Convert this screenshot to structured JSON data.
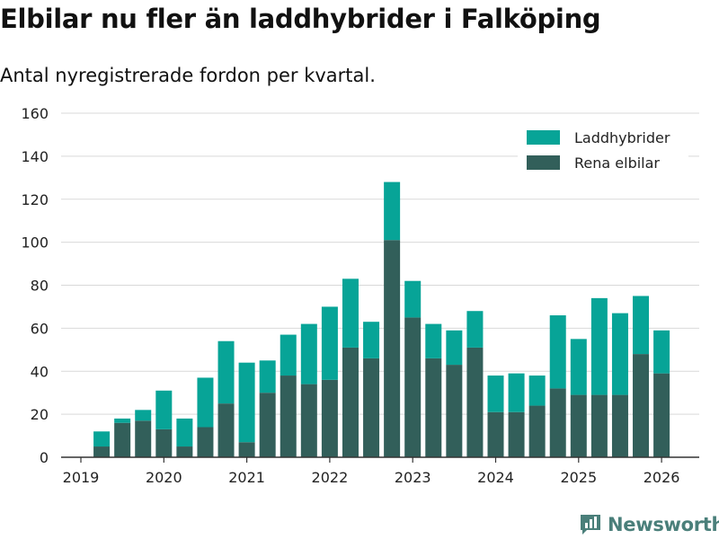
{
  "header": {
    "title": "Elbilar nu fler än laddhybrider i Falköping",
    "subtitle": "Antal nyregistrerade fordon per kvartal."
  },
  "brand": {
    "name": "Newsworthy",
    "color": "#4a7f7a"
  },
  "chart_data": {
    "type": "bar",
    "stacked": true,
    "xlabel": "",
    "ylabel": "",
    "ylim": [
      0,
      160
    ],
    "yticks": [
      0,
      20,
      40,
      60,
      80,
      100,
      120,
      140,
      160
    ],
    "xticks": [
      "2019",
      "2020",
      "2021",
      "2022",
      "2023",
      "2024",
      "2025",
      "2026"
    ],
    "grid": true,
    "legend_position": "top-right",
    "categories": [
      "2019 Q2",
      "2019 Q3",
      "2019 Q4",
      "2020 Q1",
      "2020 Q2",
      "2020 Q3",
      "2020 Q4",
      "2021 Q1",
      "2021 Q2",
      "2021 Q3",
      "2021 Q4",
      "2022 Q1",
      "2022 Q2",
      "2022 Q3",
      "2022 Q4",
      "2023 Q1",
      "2023 Q2",
      "2023 Q3",
      "2023 Q4",
      "2024 Q1",
      "2024 Q2",
      "2024 Q3",
      "2024 Q4",
      "2025 Q1",
      "2025 Q2",
      "2025 Q3",
      "2025 Q4",
      "2026 Q1"
    ],
    "series": [
      {
        "name": "Rena elbilar",
        "color": "#325f5a",
        "values": [
          5,
          16,
          17,
          13,
          5,
          14,
          25,
          7,
          30,
          38,
          34,
          36,
          51,
          46,
          101,
          65,
          46,
          43,
          51,
          21,
          21,
          24,
          32,
          29,
          29,
          29,
          48,
          39
        ]
      },
      {
        "name": "Laddhybrider",
        "color": "#07a497",
        "values": [
          7,
          2,
          5,
          18,
          13,
          23,
          29,
          37,
          15,
          19,
          28,
          34,
          32,
          17,
          27,
          17,
          16,
          16,
          17,
          17,
          18,
          14,
          34,
          26,
          45,
          38,
          27,
          20
        ]
      }
    ],
    "legend": [
      "Laddhybrider",
      "Rena elbilar"
    ]
  }
}
